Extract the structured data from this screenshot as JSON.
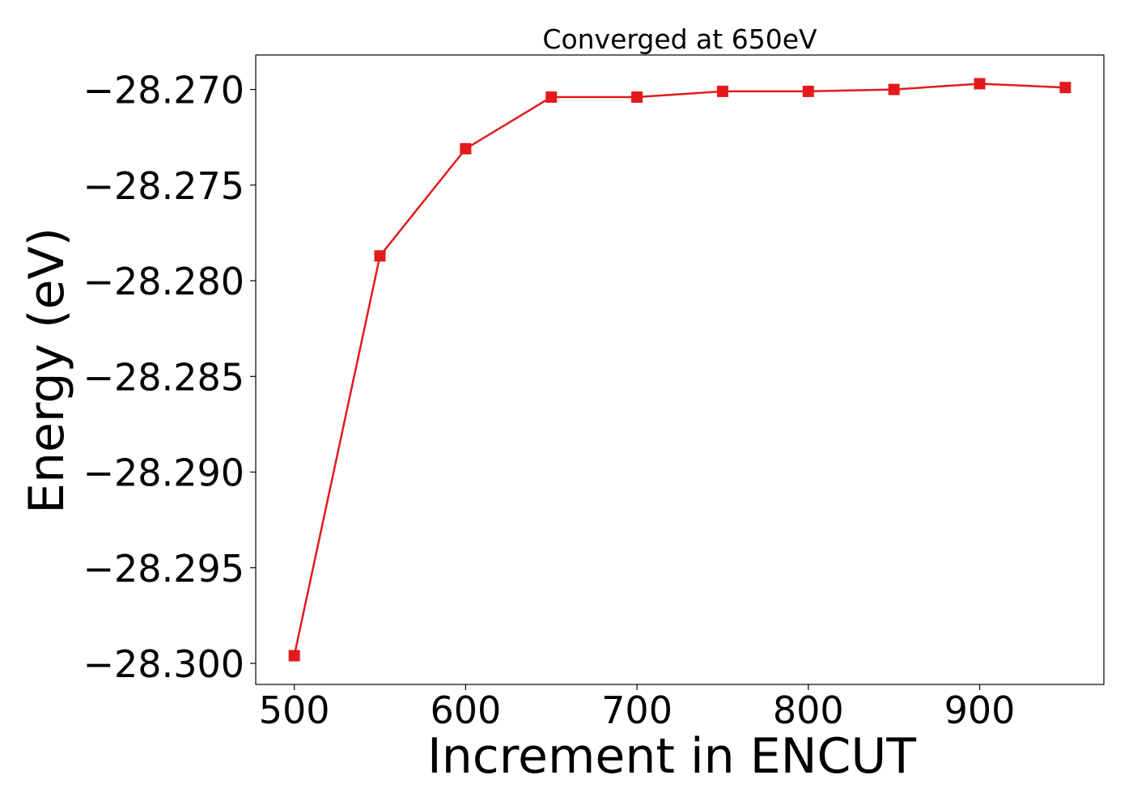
{
  "chart_data": {
    "type": "line",
    "title": "Converged at 650eV",
    "xlabel": "Increment in ENCUT",
    "ylabel": "Energy (eV)",
    "xlim": [
      477.5,
      972.5
    ],
    "ylim": [
      -28.3011,
      -28.2682
    ],
    "xticks": [
      500,
      600,
      700,
      800,
      900
    ],
    "xtick_labels": [
      "500",
      "600",
      "700",
      "800",
      "900"
    ],
    "yticks": [
      -28.27,
      -28.275,
      -28.28,
      -28.285,
      -28.29,
      -28.295,
      -28.3
    ],
    "ytick_labels": [
      "−28.270",
      "−28.275",
      "−28.280",
      "−28.285",
      "−28.290",
      "−28.295",
      "−28.300"
    ],
    "grid": false,
    "legend": "none",
    "series": [
      {
        "color": "#e31a1c",
        "marker": "square",
        "x": [
          500,
          550,
          600,
          650,
          700,
          750,
          800,
          850,
          900,
          950
        ],
        "y": [
          -28.2996,
          -28.2787,
          -28.2731,
          -28.2704,
          -28.2704,
          -28.2701,
          -28.2701,
          -28.27,
          -28.2697,
          -28.2699
        ]
      }
    ]
  }
}
